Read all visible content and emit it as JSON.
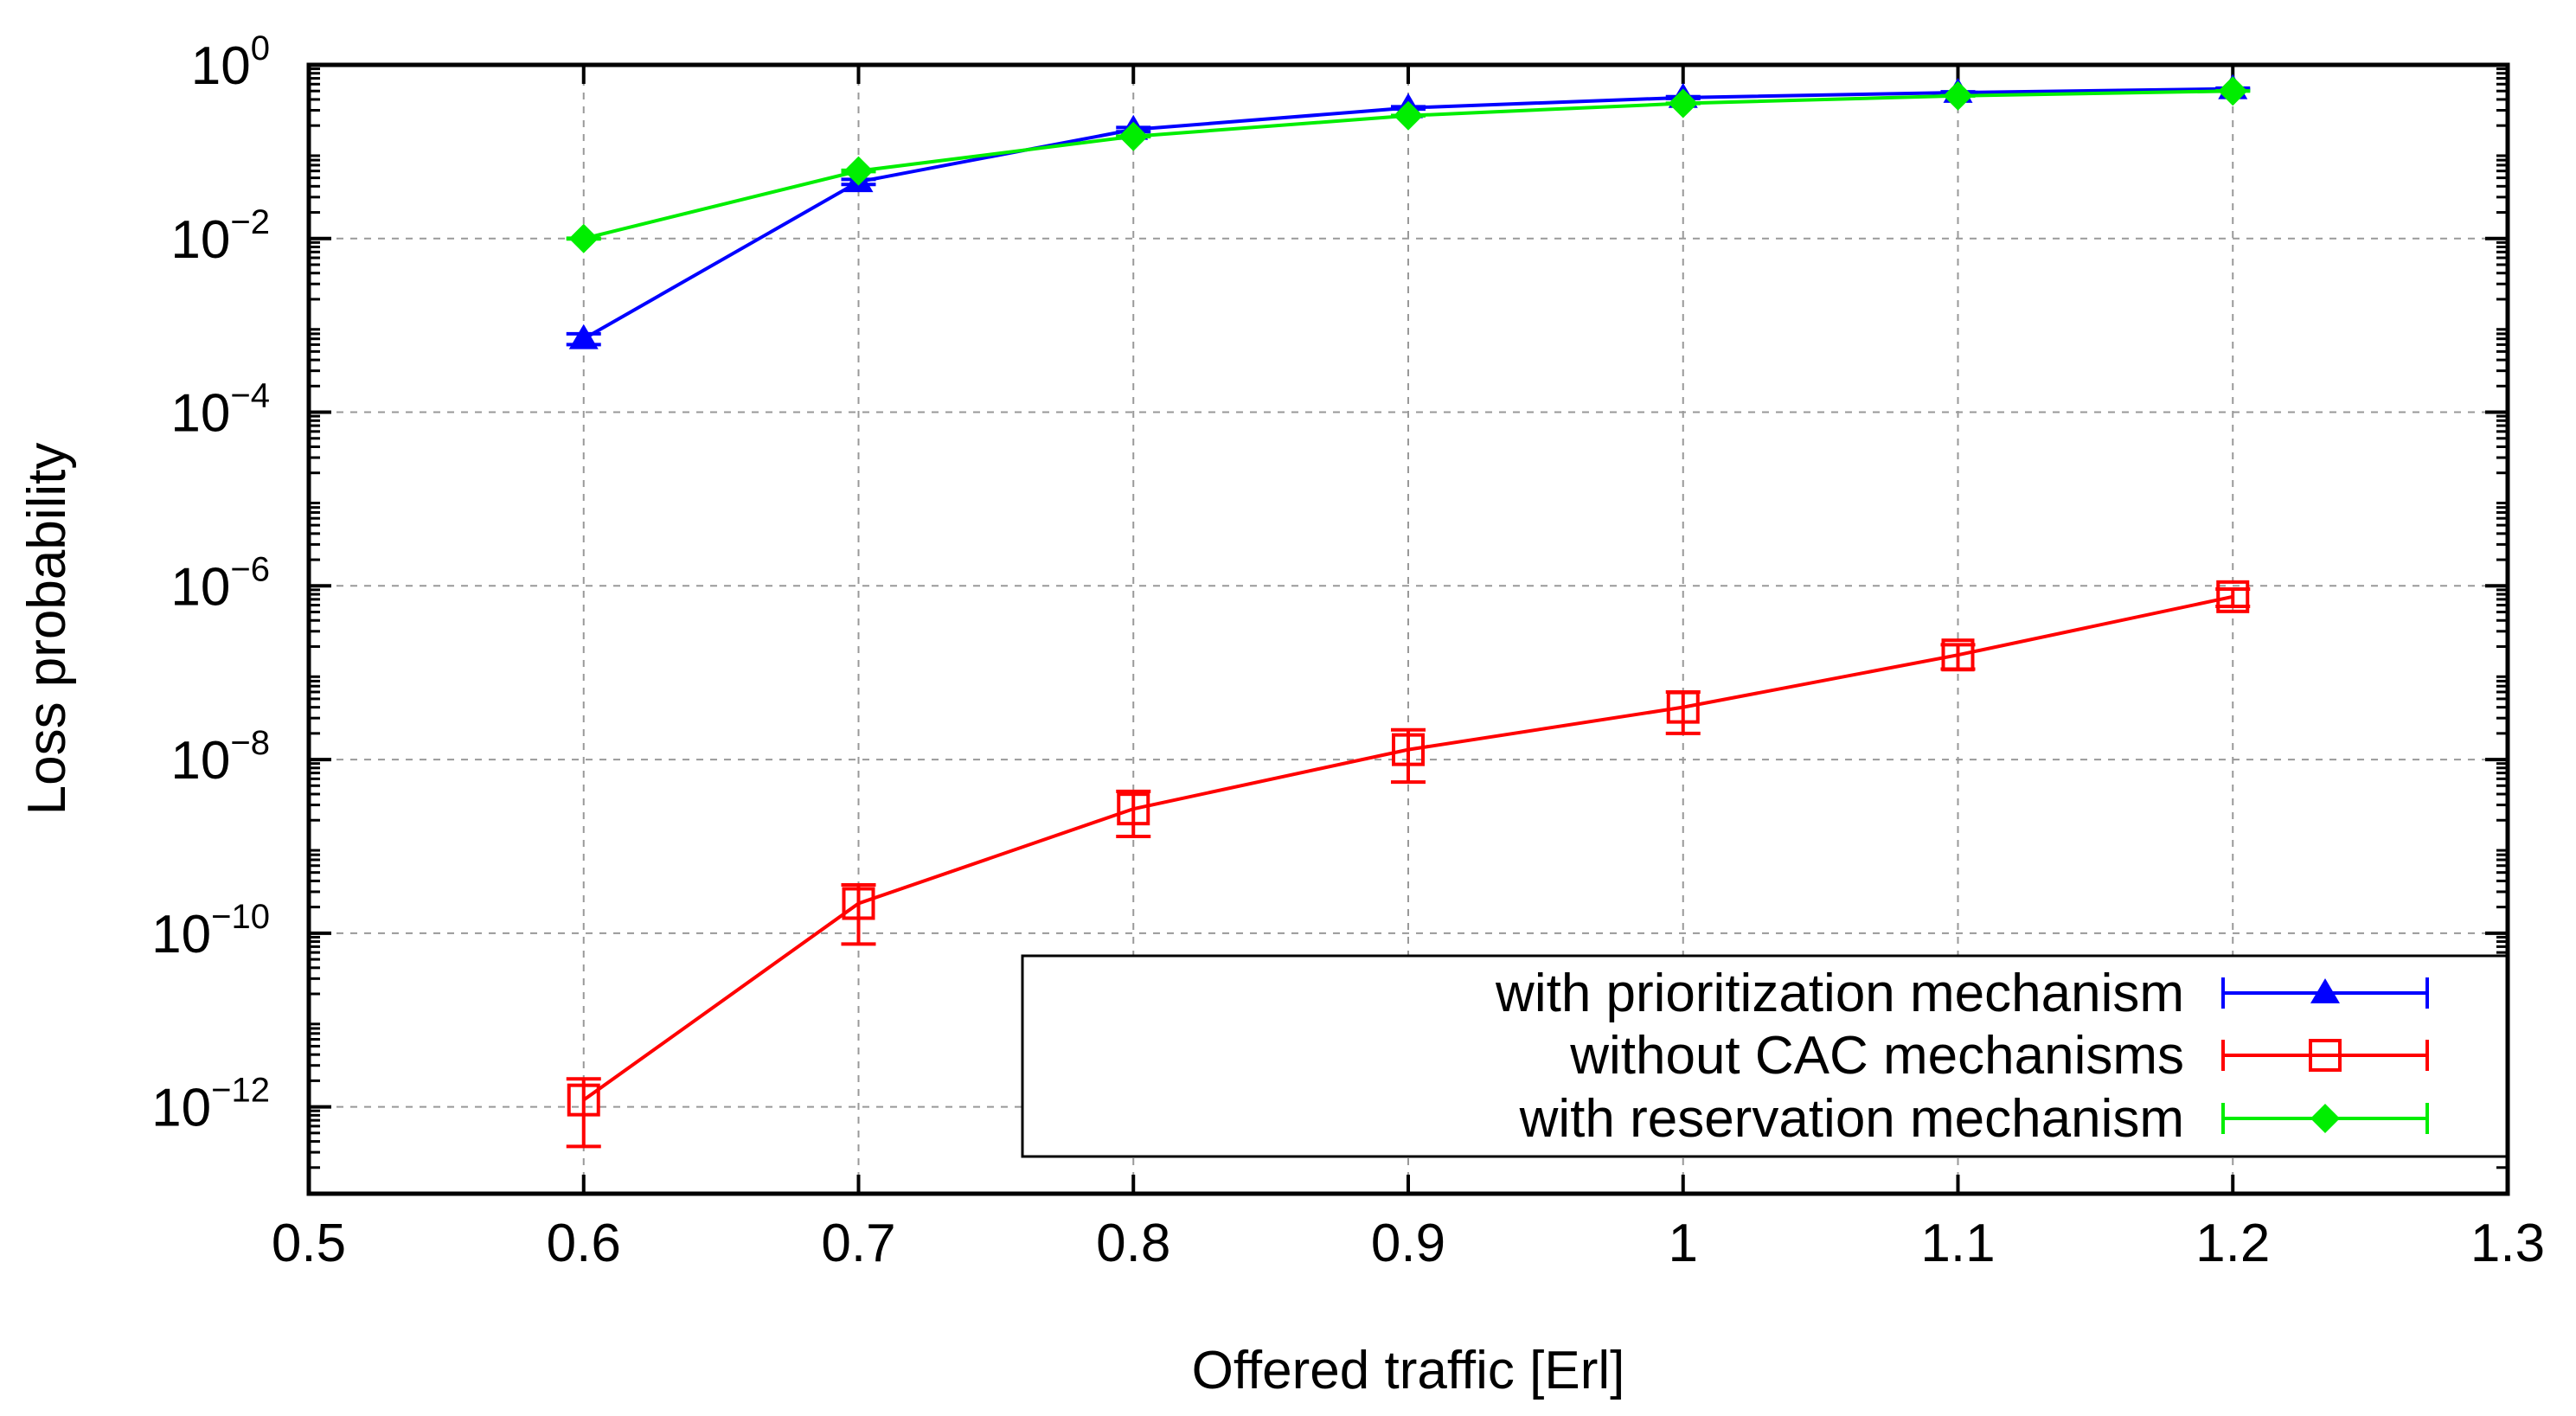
{
  "chart_data": {
    "type": "line",
    "xlabel": "Offered traffic [Erl]",
    "ylabel": "Loss probability",
    "xlim": [
      0.5,
      1.3
    ],
    "x_ticks": [
      "0.5",
      "0.6",
      "0.7",
      "0.8",
      "0.9",
      "1",
      "1.1",
      "1.2",
      "1.3"
    ],
    "y_scale": "log",
    "ylim_log10": [
      -13,
      0
    ],
    "y_ticks": [
      {
        "base": "10",
        "exp": "0",
        "log": 0
      },
      {
        "base": "10",
        "exp": "−2",
        "log": -2
      },
      {
        "base": "10",
        "exp": "−4",
        "log": -4
      },
      {
        "base": "10",
        "exp": "−6",
        "log": -6
      },
      {
        "base": "10",
        "exp": "−8",
        "log": -8
      },
      {
        "base": "10",
        "exp": "−10",
        "log": -10
      },
      {
        "base": "10",
        "exp": "−12",
        "log": -12
      }
    ],
    "grid": true,
    "legend_position": "bottom-right",
    "x": [
      0.6,
      0.7,
      0.8,
      0.9,
      1.0,
      1.1,
      1.2
    ],
    "series": [
      {
        "name": "with prioritization mechanism",
        "color": "#0000ff",
        "marker": "triangle",
        "values": [
          0.0007,
          0.045,
          0.18,
          0.32,
          0.42,
          0.48,
          0.53
        ],
        "err_low": [
          0.0006,
          0.042,
          0.17,
          0.31,
          0.41,
          0.47,
          0.52
        ],
        "err_high": [
          0.0008,
          0.048,
          0.19,
          0.33,
          0.43,
          0.49,
          0.54
        ]
      },
      {
        "name": "without CAC mechanisms",
        "color": "#ff0000",
        "marker": "open-square",
        "values": [
          1.2e-12,
          2.2e-10,
          2.7e-09,
          1.3e-08,
          4e-08,
          1.6e-07,
          7.5e-07
        ],
        "err_low": [
          3.5e-13,
          7.5e-11,
          1.3e-09,
          5.5e-09,
          2e-08,
          1.1e-07,
          5.8e-07
        ],
        "err_high": [
          2.1e-12,
          3.6e-10,
          4.3e-09,
          2.2e-08,
          6e-08,
          2.1e-07,
          9.2e-07
        ]
      },
      {
        "name": "with reservation mechanism",
        "color": "#00ee00",
        "marker": "diamond",
        "values": [
          0.01,
          0.06,
          0.15,
          0.26,
          0.36,
          0.44,
          0.5
        ],
        "err_low": [
          0.0099,
          0.059,
          0.149,
          0.259,
          0.359,
          0.439,
          0.499
        ],
        "err_high": [
          0.0101,
          0.061,
          0.151,
          0.261,
          0.361,
          0.441,
          0.501
        ]
      }
    ]
  }
}
